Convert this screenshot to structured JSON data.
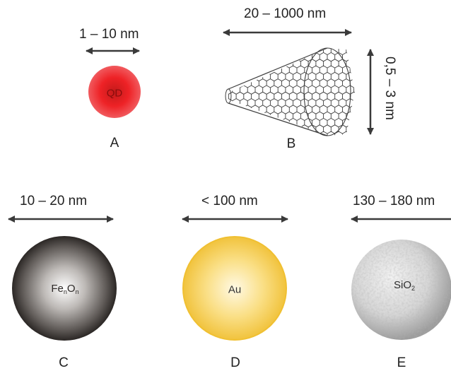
{
  "panels": {
    "a": {
      "label": "A",
      "size": "1 – 10 nm",
      "inner": "QD"
    },
    "b": {
      "label": "B",
      "length": "20 – 1000 nm",
      "diameter": "0,5 – 3 nm"
    },
    "c": {
      "label": "C",
      "size": "10 – 20 nm",
      "inner_base": "Fe",
      "inner_sub1": "n",
      "inner_mid": "O",
      "inner_sub2": "n"
    },
    "d": {
      "label": "D",
      "size": "< 100 nm",
      "inner": "Au"
    },
    "e": {
      "label": "E",
      "size": "130 – 180 nm",
      "inner_base": "SiO",
      "inner_sub": "2"
    }
  },
  "colors": {
    "qd": "#e8191e",
    "iron_oxide": "#4a4644",
    "gold": "#f3c33d",
    "silica": "#c9c9c9",
    "arrow": "#3a3a3a"
  }
}
